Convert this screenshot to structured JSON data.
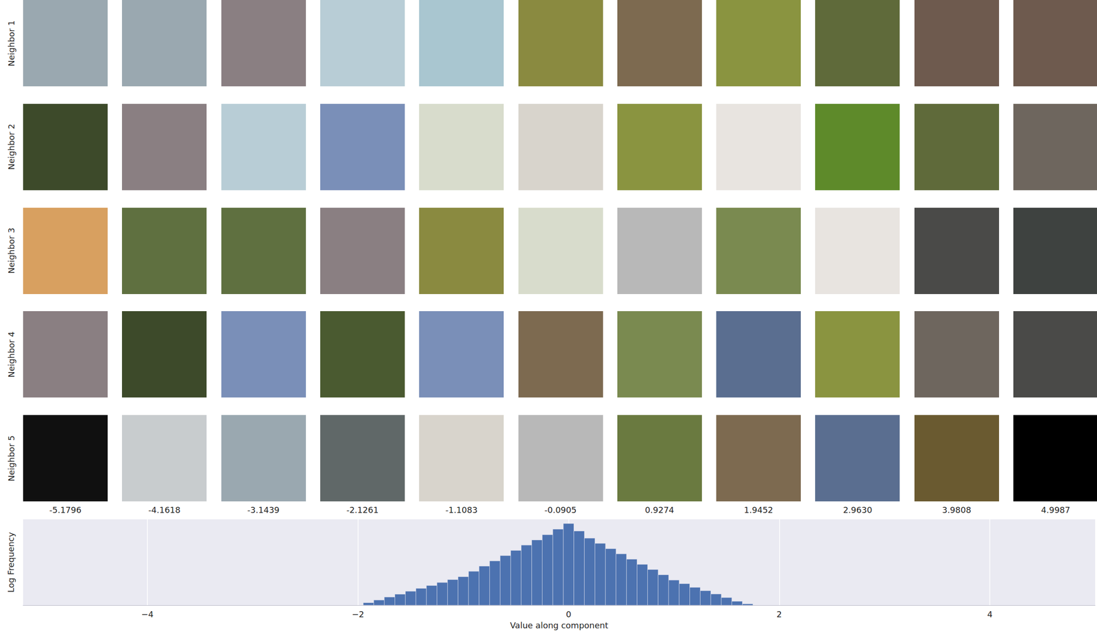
{
  "chart_data": {
    "type": "histogram",
    "x_label": "Value along component",
    "y_label": "Log Frequency",
    "bins": [
      -1.95,
      -1.85,
      -1.75,
      -1.65,
      -1.55,
      -1.45,
      -1.35,
      -1.25,
      -1.15,
      -1.05,
      -0.95,
      -0.85,
      -0.75,
      -0.65,
      -0.55,
      -0.45,
      -0.35,
      -0.25,
      -0.15,
      -0.05,
      0.05,
      0.15,
      0.25,
      0.35,
      0.45,
      0.55,
      0.65,
      0.75,
      0.85,
      0.95,
      1.05,
      1.15,
      1.25,
      1.35,
      1.45,
      1.55,
      1.65,
      1.75
    ],
    "counts": [
      1.4,
      2,
      3,
      4.4,
      6.5,
      9.6,
      14,
      21,
      31,
      46,
      94,
      190,
      380,
      770,
      1550,
      3150,
      6300,
      12800,
      27000,
      57000,
      21000,
      8000,
      4000,
      1950,
      980,
      480,
      240,
      120,
      59,
      29,
      18,
      11,
      7,
      4.5,
      2.8,
      1.7,
      1.2
    ],
    "color": "#4c72b0",
    "xlim": [
      -5.18,
      5.0
    ],
    "xticks": [
      {
        "value": -4,
        "label": "−4"
      },
      {
        "value": -2,
        "label": "−2"
      },
      0,
      2,
      4
    ],
    "ylim": [
      1,
      100000
    ],
    "log": "y",
    "grid": true,
    "tick_labels": "x"
  },
  "image_grid": {
    "row_labels": [
      "Neighbor 1",
      "Neighbor 2",
      "Neighbor 3",
      "Neighbor 4",
      "Neighbor 5"
    ],
    "column_values": [
      -5.1796,
      -4.1618,
      -3.1439,
      -2.1261,
      -1.1083,
      -0.0905,
      0.9274,
      1.9452,
      {
        "value": 2.963,
        "label": "2.9630"
      },
      3.9808,
      4.9987
    ]
  }
}
